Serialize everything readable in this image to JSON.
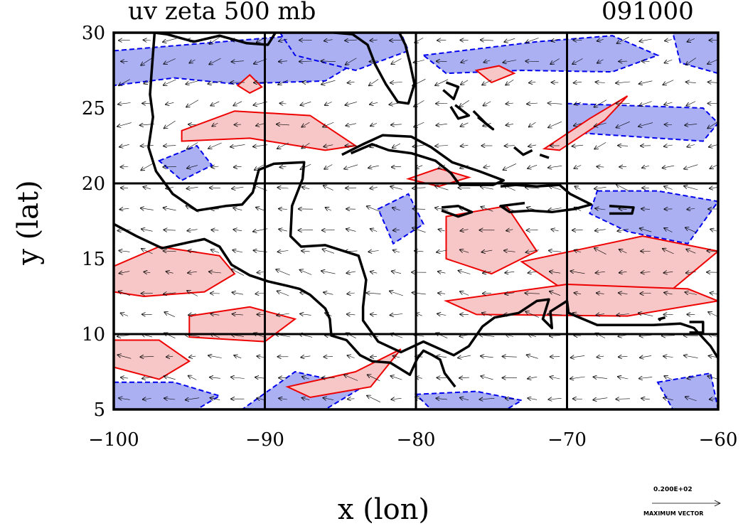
{
  "header": {
    "title_left": "uv zeta 500 mb",
    "title_right": "091000"
  },
  "axes": {
    "xlabel": "x (lon)",
    "ylabel": "y (lat)",
    "x_ticks": [
      "−100",
      "−90",
      "−80",
      "−70",
      "−60"
    ],
    "y_ticks": [
      "5",
      "10",
      "15",
      "20",
      "25",
      "30"
    ],
    "xlim": [
      -100,
      -60
    ],
    "ylim": [
      5,
      30
    ],
    "grid_lon": [
      -90,
      -80,
      -70
    ],
    "grid_lat": [
      10,
      20
    ]
  },
  "reference_vector": {
    "value": "0.200E+02",
    "caption": "MAXIMUM VECTOR"
  },
  "colors": {
    "positive_fill": "#f7c6c6",
    "positive_line": "#ee0000",
    "negative_fill": "#aab0f2",
    "negative_line": "#0000ee",
    "coastline": "#000000"
  },
  "chart_data": {
    "type": "heatmap",
    "xlim": [
      -100,
      -60
    ],
    "ylim": [
      5,
      30
    ],
    "grid": true,
    "positive_regions": [
      [
        [
          -95.5,
          23.5
        ],
        [
          -92,
          24.8
        ],
        [
          -87,
          24.5
        ],
        [
          -84,
          22.5
        ],
        [
          -86,
          22.2
        ],
        [
          -91,
          23
        ],
        [
          -95.5,
          22.8
        ]
      ],
      [
        [
          -91.8,
          26.5
        ],
        [
          -91,
          27.2
        ],
        [
          -90.2,
          26.4
        ],
        [
          -91,
          26
        ]
      ],
      [
        [
          -100,
          14.5
        ],
        [
          -97,
          15.8
        ],
        [
          -93,
          15.2
        ],
        [
          -92,
          14
        ],
        [
          -94,
          12.8
        ],
        [
          -98,
          12.5
        ],
        [
          -100,
          12.8
        ]
      ],
      [
        [
          -95,
          11.2
        ],
        [
          -91,
          11.8
        ],
        [
          -88,
          11
        ],
        [
          -90,
          9.5
        ],
        [
          -95,
          9.8
        ]
      ],
      [
        [
          -100,
          9.6
        ],
        [
          -97,
          9.6
        ],
        [
          -95,
          8.2
        ],
        [
          -97,
          7
        ],
        [
          -100,
          7.8
        ]
      ],
      [
        [
          -88.5,
          6.5
        ],
        [
          -84,
          7.5
        ],
        [
          -81,
          9
        ],
        [
          -83,
          6.5
        ],
        [
          -87,
          5.8
        ]
      ],
      [
        [
          -78,
          17.8
        ],
        [
          -74,
          18.5
        ],
        [
          -72,
          15.5
        ],
        [
          -75,
          14
        ],
        [
          -78,
          15
        ]
      ],
      [
        [
          -73,
          14.8
        ],
        [
          -65,
          16.5
        ],
        [
          -60,
          15.5
        ],
        [
          -63,
          13
        ],
        [
          -70,
          12.8
        ]
      ],
      [
        [
          -78,
          12.2
        ],
        [
          -70,
          13.3
        ],
        [
          -62,
          13
        ],
        [
          -60,
          12.2
        ],
        [
          -66,
          11.2
        ],
        [
          -76,
          11.3
        ]
      ],
      [
        [
          -71.5,
          22.3
        ],
        [
          -68.5,
          24.3
        ],
        [
          -66,
          25.8
        ],
        [
          -67.5,
          24.2
        ],
        [
          -70.5,
          22.2
        ]
      ],
      [
        [
          -76,
          27.5
        ],
        [
          -74.5,
          27.8
        ],
        [
          -73.5,
          27.3
        ],
        [
          -75,
          26.7
        ]
      ],
      [
        [
          -80.5,
          20.3
        ],
        [
          -78.5,
          21
        ],
        [
          -76.5,
          20.4
        ],
        [
          -78.5,
          19.8
        ]
      ]
    ],
    "negative_regions": [
      [
        [
          -100,
          28.8
        ],
        [
          -94,
          29.3
        ],
        [
          -88,
          29.8
        ],
        [
          -84,
          28
        ],
        [
          -86,
          26.8
        ],
        [
          -92,
          26.6
        ],
        [
          -96,
          27
        ],
        [
          -100,
          26.5
        ]
      ],
      [
        [
          -89,
          30
        ],
        [
          -81,
          30
        ],
        [
          -80.5,
          28.8
        ],
        [
          -84,
          27.5
        ],
        [
          -88,
          28.5
        ]
      ],
      [
        [
          -79.5,
          28.5
        ],
        [
          -72,
          29.4
        ],
        [
          -67,
          29.8
        ],
        [
          -64,
          28.5
        ],
        [
          -67,
          27.4
        ],
        [
          -73,
          27.5
        ],
        [
          -78,
          27.3
        ]
      ],
      [
        [
          -63,
          30
        ],
        [
          -60,
          30
        ],
        [
          -60,
          27.3
        ],
        [
          -62.5,
          28
        ]
      ],
      [
        [
          -70,
          25.3
        ],
        [
          -61,
          25
        ],
        [
          -60,
          24
        ],
        [
          -61,
          22.8
        ],
        [
          -70,
          23.4
        ]
      ],
      [
        [
          -68,
          19.5
        ],
        [
          -64,
          19.5
        ],
        [
          -60,
          18.8
        ],
        [
          -62,
          16
        ],
        [
          -66,
          16.8
        ],
        [
          -68.5,
          18
        ]
      ],
      [
        [
          -82.5,
          18.3
        ],
        [
          -80.5,
          19.3
        ],
        [
          -79.5,
          17.3
        ],
        [
          -81.5,
          16
        ]
      ],
      [
        [
          -97,
          21.5
        ],
        [
          -94.5,
          22.5
        ],
        [
          -93.5,
          21.2
        ],
        [
          -95.5,
          20.2
        ]
      ],
      [
        [
          -100,
          6.8
        ],
        [
          -96,
          6.8
        ],
        [
          -93,
          5.9
        ],
        [
          -94.5,
          5
        ],
        [
          -100,
          5
        ]
      ],
      [
        [
          -91.5,
          5
        ],
        [
          -86,
          5
        ],
        [
          -83.5,
          6.5
        ],
        [
          -88,
          7.5
        ]
      ],
      [
        [
          -80,
          6
        ],
        [
          -76,
          6.2
        ],
        [
          -73,
          5.6
        ],
        [
          -74,
          5
        ],
        [
          -79,
          5
        ]
      ],
      [
        [
          -64,
          6.8
        ],
        [
          -60.5,
          7.4
        ],
        [
          -60,
          5
        ],
        [
          -63,
          5
        ]
      ]
    ],
    "coastlines": [
      [
        [
          -97.3,
          30
        ],
        [
          -96.5,
          29.9
        ],
        [
          -94.7,
          29.4
        ],
        [
          -93,
          29.8
        ],
        [
          -91.2,
          29.3
        ],
        [
          -89.8,
          29.2
        ],
        [
          -89.3,
          30
        ],
        [
          -88,
          30.3
        ],
        [
          -86.5,
          30.4
        ],
        [
          -85.4,
          30
        ],
        [
          -84.2,
          29.9
        ],
        [
          -83.2,
          29.2
        ],
        [
          -82.7,
          27.9
        ],
        [
          -82,
          26.6
        ],
        [
          -81.2,
          25.4
        ],
        [
          -80.5,
          25.3
        ],
        [
          -80.1,
          26.6
        ],
        [
          -80.4,
          28
        ],
        [
          -80.7,
          29.2
        ],
        [
          -81.1,
          30
        ]
      ],
      [
        [
          -97.3,
          30
        ],
        [
          -97.5,
          27.3
        ],
        [
          -97.6,
          25.9
        ],
        [
          -97.4,
          24.4
        ],
        [
          -97.7,
          22.4
        ],
        [
          -97.2,
          20.8
        ],
        [
          -96.1,
          19.3
        ],
        [
          -94.5,
          18.2
        ],
        [
          -92.6,
          18.5
        ],
        [
          -91.5,
          18.6
        ],
        [
          -90.8,
          19.4
        ],
        [
          -90.4,
          20.9
        ],
        [
          -89.4,
          21.3
        ],
        [
          -87.4,
          21.4
        ],
        [
          -87.5,
          20.3
        ],
        [
          -88.2,
          18.5
        ],
        [
          -88.3,
          16.5
        ],
        [
          -87.6,
          15.8
        ],
        [
          -86,
          15.9
        ],
        [
          -83.8,
          15.2
        ],
        [
          -83.3,
          13.6
        ],
        [
          -83.5,
          11.8
        ],
        [
          -83.5,
          10.9
        ],
        [
          -82.5,
          9.5
        ],
        [
          -81,
          8.8
        ],
        [
          -79.5,
          9.5
        ],
        [
          -77.5,
          8.6
        ],
        [
          -76.5,
          9.2
        ],
        [
          -75.6,
          10.5
        ],
        [
          -74.8,
          11.1
        ],
        [
          -73.2,
          11.4
        ],
        [
          -72,
          12.2
        ],
        [
          -71.2,
          12.3
        ],
        [
          -71.6,
          11
        ],
        [
          -71,
          10.4
        ],
        [
          -71.1,
          11.5
        ],
        [
          -70,
          12.2
        ],
        [
          -69.9,
          11.4
        ],
        [
          -68,
          10.6
        ],
        [
          -66,
          10.6
        ],
        [
          -64.3,
          10.6
        ],
        [
          -62.5,
          10.7
        ],
        [
          -61.6,
          10.4
        ],
        [
          -60.5,
          9.2
        ],
        [
          -60,
          8.4
        ]
      ],
      [
        [
          -100,
          17.3
        ],
        [
          -98.5,
          16.5
        ],
        [
          -96.8,
          15.7
        ],
        [
          -95,
          16.1
        ],
        [
          -94,
          16.3
        ],
        [
          -93,
          15.8
        ],
        [
          -92.2,
          14.6
        ],
        [
          -91,
          13.9
        ],
        [
          -89.8,
          13.5
        ],
        [
          -88.5,
          13.2
        ],
        [
          -87.7,
          13
        ],
        [
          -87,
          12.6
        ],
        [
          -86,
          11.7
        ],
        [
          -85.7,
          11
        ],
        [
          -85.6,
          9.9
        ],
        [
          -84.6,
          9.6
        ],
        [
          -83.7,
          8.6
        ],
        [
          -82.9,
          8.2
        ],
        [
          -81.7,
          8.1
        ],
        [
          -80.4,
          7.3
        ],
        [
          -79.9,
          8.4
        ],
        [
          -79.5,
          8.9
        ],
        [
          -78.9,
          8.6
        ],
        [
          -78.4,
          8.3
        ],
        [
          -78.1,
          7.4
        ],
        [
          -77.4,
          6.5
        ]
      ],
      [
        [
          -84.9,
          21.9
        ],
        [
          -83.5,
          22.6
        ],
        [
          -82.2,
          23.2
        ],
        [
          -80.3,
          23.1
        ],
        [
          -79,
          22.4
        ],
        [
          -77.6,
          21.4
        ],
        [
          -75.8,
          20.8
        ],
        [
          -74.2,
          20.2
        ],
        [
          -74.9,
          19.9
        ],
        [
          -77.1,
          19.9
        ],
        [
          -77.7,
          20.7
        ],
        [
          -78.7,
          21.5
        ],
        [
          -80.3,
          22
        ],
        [
          -81.8,
          22.2
        ],
        [
          -82.9,
          22.6
        ],
        [
          -84.3,
          22
        ]
      ],
      [
        [
          -74.4,
          19.8
        ],
        [
          -73.4,
          19.9
        ],
        [
          -72,
          19.8
        ],
        [
          -70.5,
          19.9
        ],
        [
          -69.8,
          19.3
        ],
        [
          -68.4,
          18.6
        ],
        [
          -69.5,
          18.3
        ],
        [
          -71,
          18.1
        ],
        [
          -72.4,
          18.2
        ],
        [
          -73.8,
          18.1
        ],
        [
          -74.4,
          18.5
        ],
        [
          -72.8,
          18.7
        ]
      ],
      [
        [
          -78.3,
          18.4
        ],
        [
          -77.2,
          18.5
        ],
        [
          -76.3,
          18.1
        ],
        [
          -77.2,
          17.8
        ],
        [
          -78.3,
          18.2
        ]
      ],
      [
        [
          -67.2,
          18.5
        ],
        [
          -65.6,
          18.4
        ],
        [
          -65.7,
          18
        ],
        [
          -67.2,
          18
        ]
      ],
      [
        [
          -78,
          26.7
        ],
        [
          -77.2,
          26.4
        ],
        [
          -77.5,
          25.6
        ],
        [
          -78.2,
          26.2
        ]
      ],
      [
        [
          -77.7,
          25.1
        ],
        [
          -77.2,
          24.3
        ],
        [
          -76.5,
          24.5
        ],
        [
          -77.4,
          25.2
        ]
      ],
      [
        [
          -76.2,
          24.8
        ],
        [
          -75.3,
          23.9
        ],
        [
          -74.9,
          23.6
        ],
        [
          -75.9,
          24.4
        ]
      ],
      [
        [
          -73.5,
          22.4
        ],
        [
          -72.9,
          21.9
        ],
        [
          -72.3,
          22.2
        ]
      ],
      [
        [
          -71.8,
          21.9
        ],
        [
          -71.2,
          21.7
        ]
      ],
      [
        [
          -63.5,
          11.1
        ],
        [
          -63.9,
          11
        ],
        [
          -63.8,
          10.9
        ]
      ],
      [
        [
          -61.9,
          10.8
        ],
        [
          -61,
          10.8
        ],
        [
          -61,
          10.1
        ],
        [
          -61.9,
          10.1
        ]
      ]
    ]
  }
}
